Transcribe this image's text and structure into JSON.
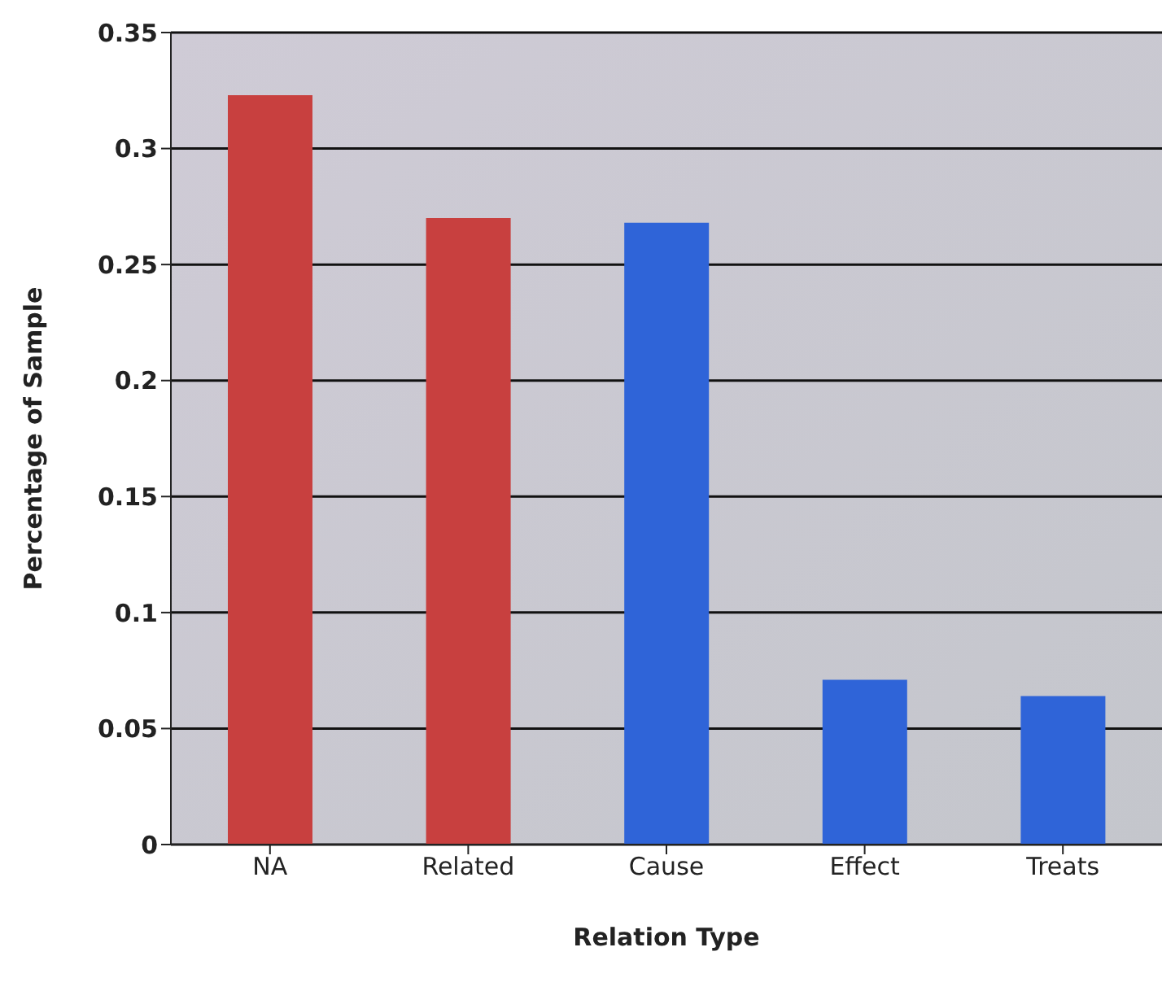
{
  "chart_data": {
    "type": "bar",
    "xlabel": "Relation Type",
    "ylabel": "Percentage of Sample",
    "categories": [
      "NA",
      "Related",
      "Cause",
      "Effect",
      "Treats"
    ],
    "values": [
      0.323,
      0.27,
      0.268,
      0.071,
      0.064
    ],
    "colors": [
      "#c8403f",
      "#c8403f",
      "#2f64d8",
      "#2f64d8",
      "#2f64d8"
    ],
    "ylim": [
      0,
      0.35
    ],
    "yticks": [
      0,
      0.05,
      0.1,
      0.15,
      0.2,
      0.25,
      0.3,
      0.35
    ],
    "grid": "y"
  }
}
